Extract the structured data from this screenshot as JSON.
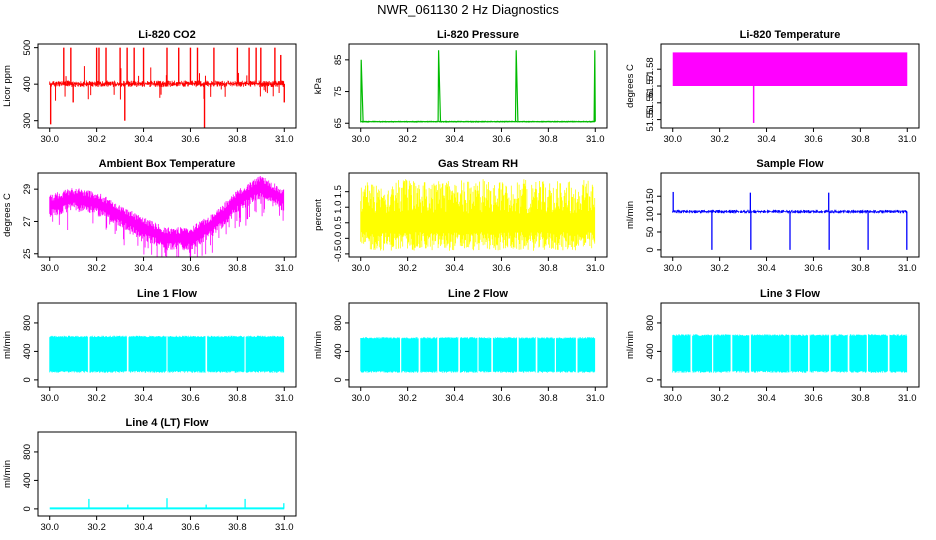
{
  "figure": {
    "title": "NWR_061130  2 Hz Diagnostics"
  },
  "chart_data": [
    {
      "type": "line",
      "title": "Li-820 CO2",
      "xlabel": "",
      "ylabel": "Licor ppm",
      "color": "#ff0000",
      "xlim": [
        29.95,
        31.05
      ],
      "ylim": [
        280,
        510
      ],
      "xticks": [
        "30.0",
        "30.2",
        "30.4",
        "30.6",
        "30.8",
        "31.0"
      ],
      "yticks": [
        "300",
        "400",
        "500"
      ],
      "band": [
        392,
        410
      ],
      "series": [
        {
          "x": [
            30.0,
            30.004,
            30.06,
            30.09,
            30.1,
            30.2,
            30.21,
            30.24,
            30.3,
            30.32,
            30.33,
            30.36,
            30.4,
            30.5,
            30.55,
            30.6,
            30.63,
            30.66,
            30.7,
            30.8,
            30.85,
            30.88,
            30.9,
            30.96,
            30.985,
            31.0
          ],
          "y": [
            400,
            290,
            500,
            500,
            350,
            500,
            500,
            500,
            500,
            300,
            500,
            500,
            500,
            500,
            500,
            500,
            500,
            280,
            500,
            500,
            500,
            500,
            500,
            500,
            480,
            350
          ]
        }
      ]
    },
    {
      "type": "line",
      "title": "Li-820 Pressure",
      "xlabel": "",
      "ylabel": "kPa",
      "color": "#00bb00",
      "xlim": [
        29.95,
        31.05
      ],
      "ylim": [
        63.5,
        90
      ],
      "xticks": [
        "30.0",
        "30.2",
        "30.4",
        "30.6",
        "30.8",
        "31.0"
      ],
      "yticks": [
        "65",
        "75",
        "85"
      ],
      "band": [
        65.2,
        65.8
      ],
      "series": [
        {
          "x": [
            30.0,
            30.002,
            30.01,
            30.33,
            30.332,
            30.34,
            30.66,
            30.663,
            30.67,
            30.995,
            30.998
          ],
          "y": [
            65.5,
            85,
            65.5,
            65.5,
            88,
            65.5,
            65.5,
            88,
            65.5,
            65.5,
            88
          ]
        }
      ]
    },
    {
      "type": "area",
      "title": "Li-820 Temperature",
      "xlabel": "",
      "ylabel": "degrees C",
      "color": "#ff00ff",
      "xlim": [
        29.95,
        31.05
      ],
      "ylim": [
        51.545,
        51.595
      ],
      "xticks": [
        "30.0",
        "30.2",
        "30.4",
        "30.6",
        "30.8",
        "31.0"
      ],
      "yticks": [
        "51.55",
        "51.56",
        "51.57",
        "51.58"
      ],
      "band": [
        51.57,
        51.59
      ],
      "series": [
        {
          "x": [
            30.345
          ],
          "y": [
            51.548
          ]
        }
      ]
    },
    {
      "type": "line",
      "title": "Ambient Box Temperature",
      "xlabel": "",
      "ylabel": "degrees C",
      "color": "#ff00ff",
      "xlim": [
        29.95,
        31.05
      ],
      "ylim": [
        24.8,
        30.0
      ],
      "xticks": [
        "30.0",
        "30.2",
        "30.4",
        "30.6",
        "30.8",
        "31.0"
      ],
      "yticks": [
        "25",
        "27",
        "29"
      ],
      "series": [
        {
          "x": [
            30.0,
            30.1,
            30.2,
            30.3,
            30.4,
            30.5,
            30.6,
            30.7,
            30.8,
            30.9,
            31.0
          ],
          "y": [
            28.0,
            28.5,
            28.2,
            27.4,
            26.6,
            26.0,
            26.0,
            26.9,
            28.3,
            29.2,
            28.4
          ]
        }
      ]
    },
    {
      "type": "line",
      "title": "Gas Stream RH",
      "xlabel": "",
      "ylabel": "percent",
      "color": "#ffff00",
      "xlim": [
        29.95,
        31.05
      ],
      "ylim": [
        -0.6,
        2.1
      ],
      "xticks": [
        "30.0",
        "30.2",
        "30.4",
        "30.6",
        "30.8",
        "31.0"
      ],
      "yticks": [
        "-0.5",
        "0.0",
        "0.5",
        "1.0",
        "1.5"
      ],
      "band": [
        -0.4,
        1.9
      ]
    },
    {
      "type": "line",
      "title": "Sample Flow",
      "xlabel": "",
      "ylabel": "ml/min",
      "color": "#0000ff",
      "xlim": [
        29.95,
        31.05
      ],
      "ylim": [
        -20,
        215
      ],
      "xticks": [
        "30.0",
        "30.2",
        "30.4",
        "30.6",
        "30.8",
        "31.0"
      ],
      "yticks": [
        "0",
        "50",
        "100",
        "150"
      ],
      "band": [
        102,
        112
      ],
      "series": [
        {
          "x": [
            30.0,
            30.002,
            30.167,
            30.333,
            30.5,
            30.667,
            30.833,
            30.998
          ],
          "y": [
            108,
            162,
            0,
            0,
            0,
            0,
            0,
            0
          ]
        }
      ]
    },
    {
      "type": "area",
      "title": "Line 1 Flow",
      "xlabel": "",
      "ylabel": "ml/min",
      "color": "#00ffff",
      "xlim": [
        29.95,
        31.05
      ],
      "ylim": [
        -100,
        1080
      ],
      "xticks": [
        "30.0",
        "30.2",
        "30.4",
        "30.6",
        "30.8",
        "31.0"
      ],
      "yticks": [
        "0",
        "400",
        "800"
      ],
      "band": [
        100,
        620
      ],
      "series": [
        {
          "x": [
            30.167,
            30.333,
            30.5,
            30.667,
            30.833
          ],
          "y": [
            0,
            0,
            0,
            0,
            0
          ]
        }
      ]
    },
    {
      "type": "area",
      "title": "Line 2 Flow",
      "xlabel": "",
      "ylabel": "ml/min",
      "color": "#00ffff",
      "xlim": [
        29.95,
        31.05
      ],
      "ylim": [
        -100,
        1080
      ],
      "xticks": [
        "30.0",
        "30.2",
        "30.4",
        "30.6",
        "30.8",
        "31.0"
      ],
      "yticks": [
        "0",
        "400",
        "800"
      ],
      "band": [
        100,
        600
      ],
      "series": [
        {
          "x": [
            30.17,
            30.25,
            30.33,
            30.42,
            30.5,
            30.56,
            30.67,
            30.75,
            30.83,
            30.92
          ],
          "y": [
            0,
            0,
            0,
            0,
            0,
            0,
            0,
            0,
            0,
            0
          ]
        }
      ]
    },
    {
      "type": "area",
      "title": "Line 3 Flow",
      "xlabel": "",
      "ylabel": "ml/min",
      "color": "#00ffff",
      "xlim": [
        29.95,
        31.05
      ],
      "ylim": [
        -100,
        1080
      ],
      "xticks": [
        "30.0",
        "30.2",
        "30.4",
        "30.6",
        "30.8",
        "31.0"
      ],
      "yticks": [
        "0",
        "400",
        "800"
      ],
      "band": [
        100,
        640
      ],
      "series": [
        {
          "x": [
            30.08,
            30.17,
            30.25,
            30.33,
            30.5,
            30.58,
            30.67,
            30.75,
            30.83,
            30.92
          ],
          "y": [
            0,
            0,
            0,
            0,
            0,
            0,
            0,
            0,
            0,
            0
          ]
        }
      ]
    },
    {
      "type": "line",
      "title": "Line 4 (LT) Flow",
      "xlabel": "",
      "ylabel": "ml/min",
      "color": "#00ffff",
      "xlim": [
        29.95,
        31.05
      ],
      "ylim": [
        -100,
        1080
      ],
      "xticks": [
        "30.0",
        "30.2",
        "30.4",
        "30.6",
        "30.8",
        "31.0"
      ],
      "yticks": [
        "0",
        "400",
        "800"
      ],
      "band": [
        0,
        15
      ],
      "series": [
        {
          "x": [
            30.167,
            30.333,
            30.5,
            30.667,
            30.833,
            30.998
          ],
          "y": [
            140,
            60,
            150,
            60,
            140,
            80
          ]
        }
      ]
    }
  ]
}
